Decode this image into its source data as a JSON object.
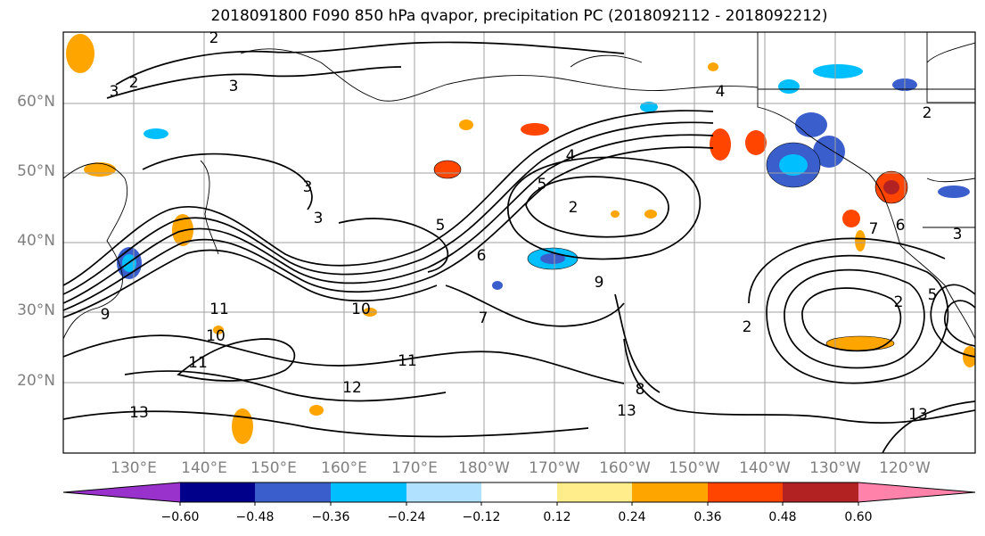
{
  "title": "2018091800 F090 850 hPa qvapor, precipitation PC (2018092112 - 2018092212)",
  "lat_labels": [
    "60°N",
    "50°N",
    "40°N",
    "30°N",
    "20°N"
  ],
  "lon_labels": [
    "130°E",
    "140°E",
    "150°E",
    "160°E",
    "170°E",
    "180°W",
    "170°W",
    "160°W",
    "150°W",
    "140°W",
    "130°W",
    "120°W"
  ],
  "colorbar": {
    "colors": [
      "#9932cc",
      "#00008b",
      "#3a5fcd",
      "#00bfff",
      "#b0e2ff",
      "#ffffff",
      "#ffec8b",
      "#ffa500",
      "#ff4500",
      "#b22222",
      "#ff82ab"
    ],
    "tick_labels": [
      "−0.60",
      "−0.48",
      "−0.36",
      "−0.24",
      "−0.12",
      "0.12",
      "0.24",
      "0.36",
      "0.48",
      "0.60"
    ]
  },
  "contour_labels": [
    "2",
    "2",
    "3",
    "3",
    "3",
    "3",
    "2",
    "4",
    "5",
    "5",
    "6",
    "7",
    "8",
    "9",
    "10",
    "10",
    "11",
    "11",
    "11",
    "12",
    "13",
    "13",
    "13",
    "2",
    "2",
    "3",
    "5",
    "6",
    "7",
    "4",
    "2",
    "9"
  ]
}
